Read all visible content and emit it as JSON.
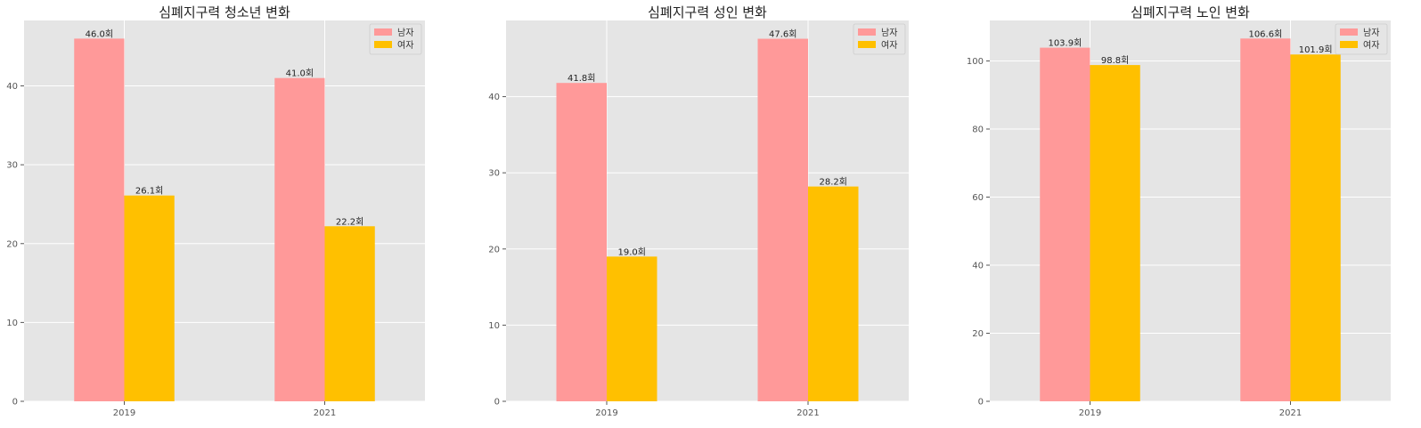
{
  "chart_data": [
    {
      "type": "bar",
      "title": "심폐지구력 청소년 변화",
      "categories": [
        "2019",
        "2021"
      ],
      "series": [
        {
          "name": "남자",
          "values": [
            46.0,
            41.0
          ],
          "labels": [
            "46.0회",
            "41.0회"
          ]
        },
        {
          "name": "여자",
          "values": [
            26.1,
            22.2
          ],
          "labels": [
            "26.1회",
            "22.2회"
          ]
        }
      ],
      "ylim": [
        0,
        48.3
      ],
      "yticks": [
        0,
        10,
        20,
        30,
        40
      ],
      "xlabel": "",
      "ylabel": "",
      "grid": true,
      "legend": "top-right"
    },
    {
      "type": "bar",
      "title": "심폐지구력 성인 변화",
      "categories": [
        "2019",
        "2021"
      ],
      "series": [
        {
          "name": "남자",
          "values": [
            41.8,
            47.6
          ],
          "labels": [
            "41.8회",
            "47.6회"
          ]
        },
        {
          "name": "여자",
          "values": [
            19.0,
            28.2
          ],
          "labels": [
            "19.0회",
            "28.2회"
          ]
        }
      ],
      "ylim": [
        0,
        50.0
      ],
      "yticks": [
        0,
        10,
        20,
        30,
        40
      ],
      "xlabel": "",
      "ylabel": "",
      "grid": true,
      "legend": "top-right"
    },
    {
      "type": "bar",
      "title": "심폐지구력 노인 변화",
      "categories": [
        "2019",
        "2021"
      ],
      "series": [
        {
          "name": "남자",
          "values": [
            103.9,
            106.6
          ],
          "labels": [
            "103.9회",
            "106.6회"
          ]
        },
        {
          "name": "여자",
          "values": [
            98.8,
            101.9
          ],
          "labels": [
            "98.8회",
            "101.9회"
          ]
        }
      ],
      "ylim": [
        0,
        111.9
      ],
      "yticks": [
        0,
        20,
        40,
        60,
        80,
        100
      ],
      "xlabel": "",
      "ylabel": "",
      "grid": true,
      "legend": "top-right"
    }
  ],
  "colors": {
    "male": "#ff9999",
    "female": "#ffc000",
    "plot_background": "#e5e5e5",
    "grid": "#ffffff"
  }
}
